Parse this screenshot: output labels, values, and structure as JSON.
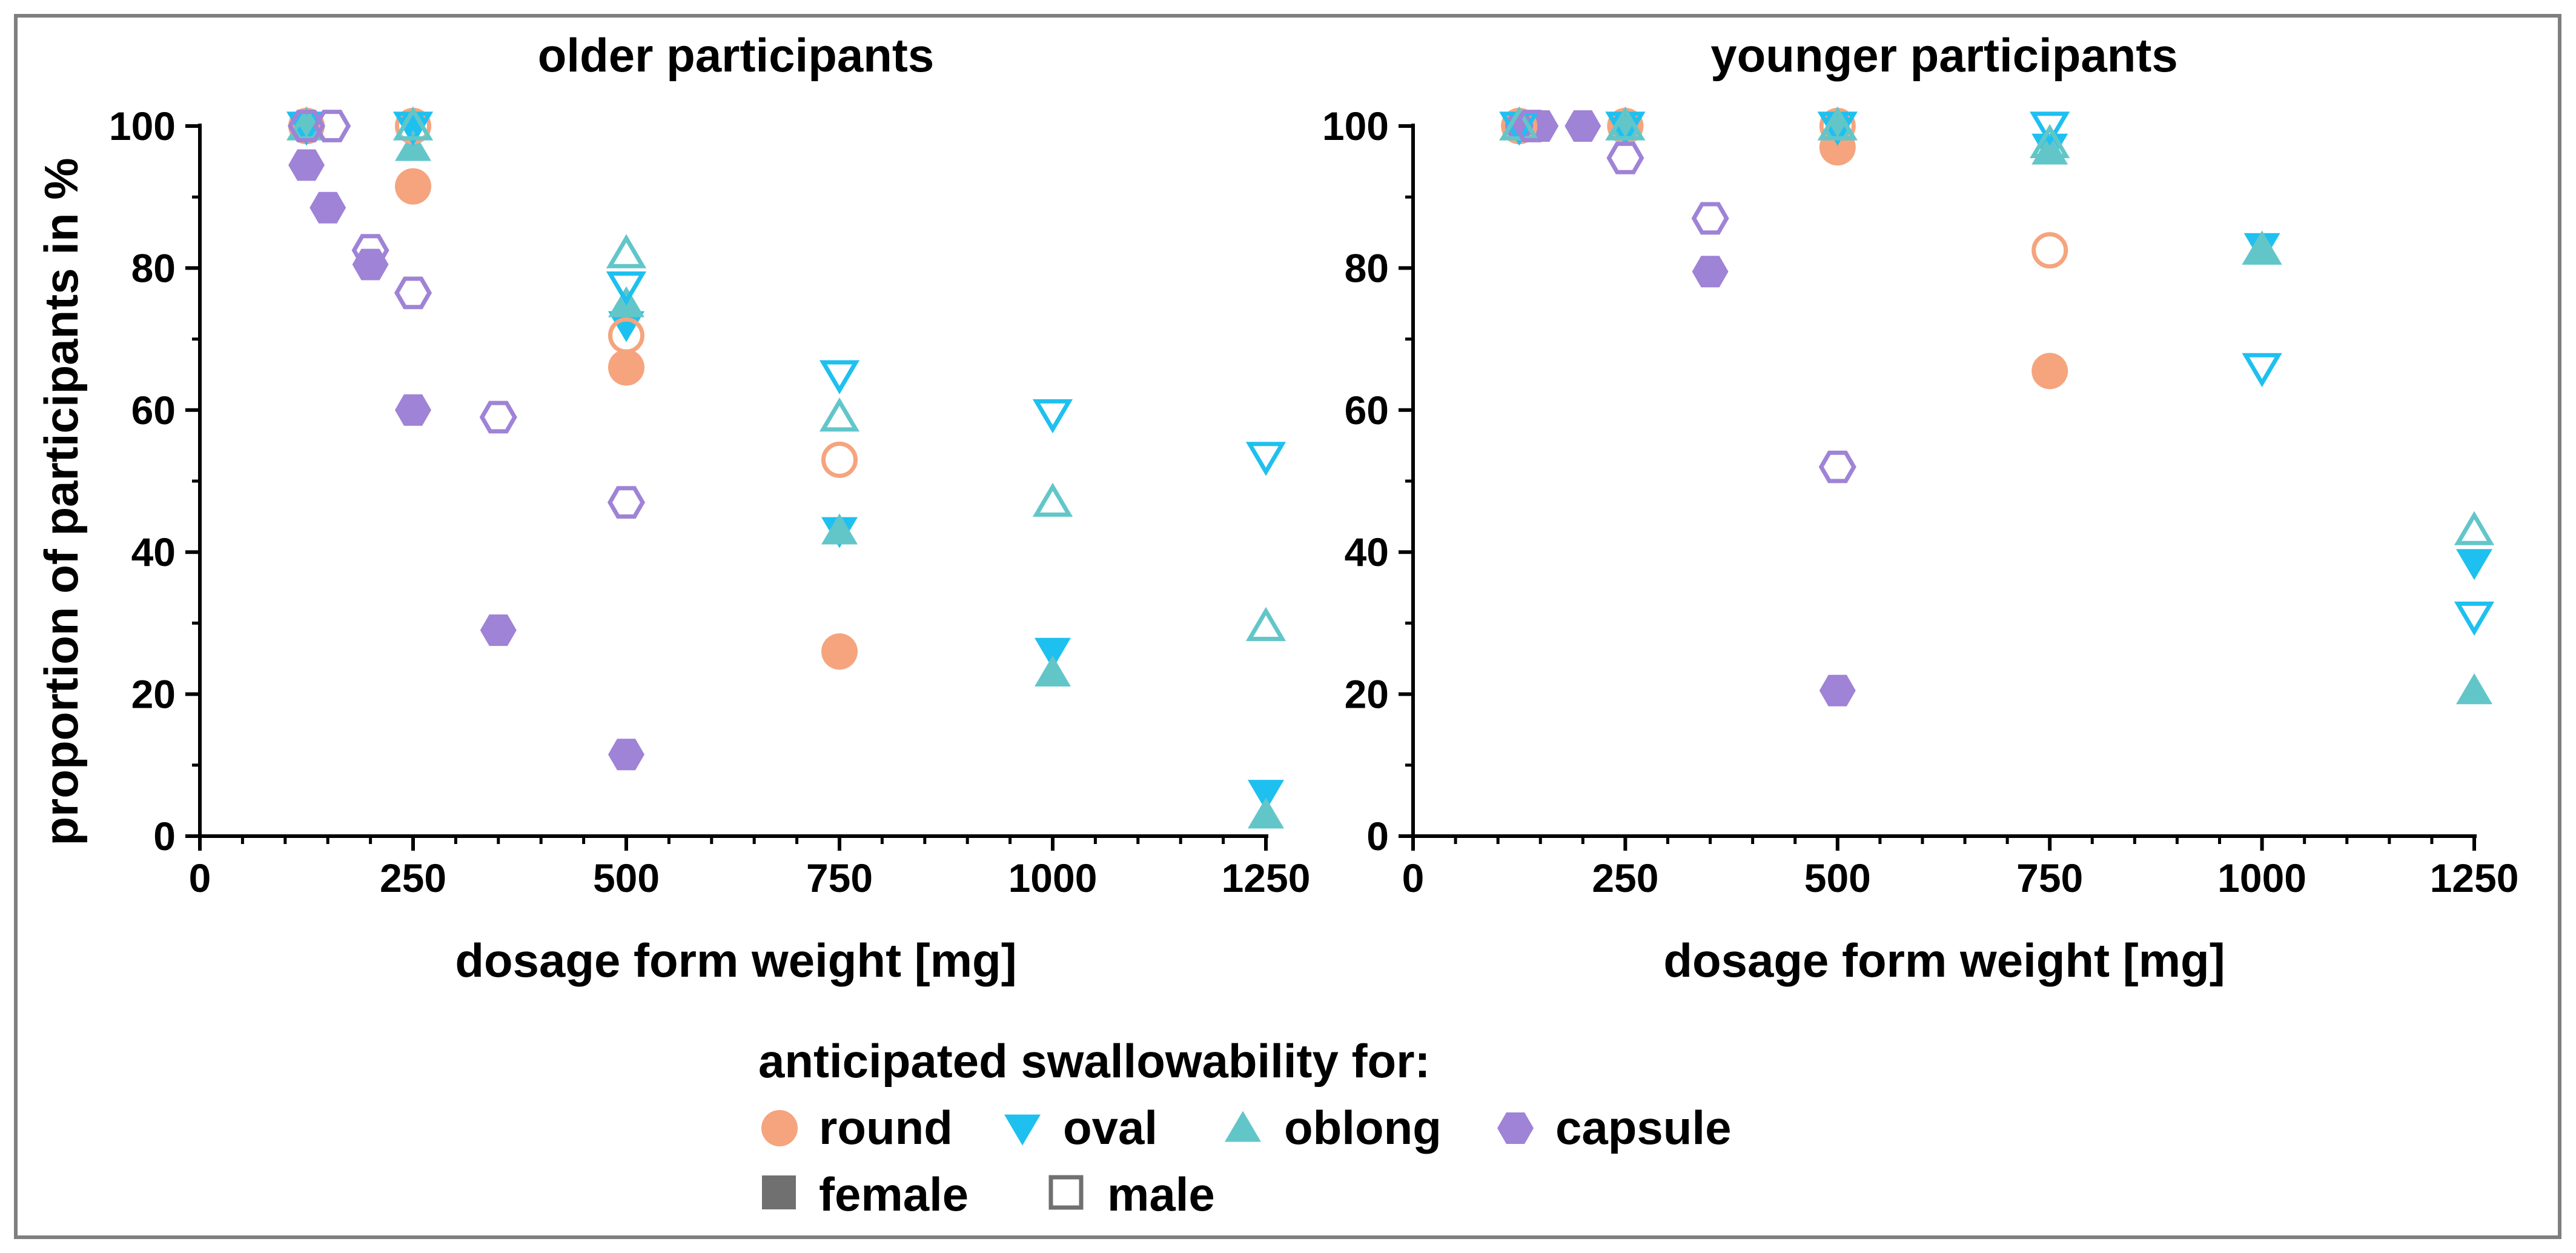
{
  "colors": {
    "round": "#F5A47E",
    "oval": "#1EC0F0",
    "oblong": "#62C6C9",
    "capsule": "#9F83D6",
    "legend_sex": "#707070",
    "frame": "#7f7f7f"
  },
  "chart_data": [
    {
      "type": "scatter",
      "title": "older participants",
      "xlabel": "dosage form weight [mg]",
      "ylabel": "proportion of participants in %",
      "xlim": [
        0,
        1250
      ],
      "ylim": [
        0,
        100
      ],
      "xticks": [
        0,
        250,
        500,
        750,
        1000,
        1250
      ],
      "yticks": [
        0,
        20,
        40,
        60,
        80,
        100
      ],
      "series": [
        {
          "shape": "round",
          "sex": "female",
          "points": [
            [
              125,
              100
            ],
            [
              250,
              91.5
            ],
            [
              500,
              66
            ],
            [
              750,
              26
            ]
          ]
        },
        {
          "shape": "round",
          "sex": "male",
          "points": [
            [
              125,
              100
            ],
            [
              250,
              100
            ],
            [
              500,
              70.5
            ],
            [
              750,
              53
            ]
          ]
        },
        {
          "shape": "oval",
          "sex": "female",
          "points": [
            [
              125,
              100
            ],
            [
              250,
              100
            ],
            [
              500,
              72
            ],
            [
              750,
              43
            ],
            [
              1000,
              26
            ],
            [
              1250,
              6
            ]
          ]
        },
        {
          "shape": "oval",
          "sex": "male",
          "points": [
            [
              125,
              100
            ],
            [
              250,
              100
            ],
            [
              500,
              77.5
            ],
            [
              750,
              65
            ],
            [
              1000,
              59.5
            ],
            [
              1250,
              53.5
            ]
          ]
        },
        {
          "shape": "oblong",
          "sex": "female",
          "points": [
            [
              125,
              100
            ],
            [
              250,
              97
            ],
            [
              500,
              75
            ],
            [
              750,
              43
            ],
            [
              1000,
              23
            ],
            [
              1250,
              3
            ]
          ]
        },
        {
          "shape": "oblong",
          "sex": "male",
          "points": [
            [
              125,
              100
            ],
            [
              250,
              100
            ],
            [
              500,
              82
            ],
            [
              750,
              59
            ],
            [
              1000,
              47
            ],
            [
              1250,
              29.5
            ]
          ]
        },
        {
          "shape": "capsule",
          "sex": "female",
          "points": [
            [
              125,
              94.5
            ],
            [
              150,
              88.5
            ],
            [
              200,
              80.5
            ],
            [
              250,
              60
            ],
            [
              350,
              29
            ],
            [
              500,
              11.5
            ]
          ]
        },
        {
          "shape": "capsule",
          "sex": "male",
          "points": [
            [
              125,
              100
            ],
            [
              155,
              100
            ],
            [
              200,
              82.5
            ],
            [
              250,
              76.5
            ],
            [
              350,
              59
            ],
            [
              500,
              47
            ]
          ]
        }
      ]
    },
    {
      "type": "scatter",
      "title": "younger participants",
      "xlabel": "dosage form weight [mg]",
      "ylabel": "",
      "xlim": [
        0,
        1250
      ],
      "ylim": [
        0,
        100
      ],
      "xticks": [
        0,
        250,
        500,
        750,
        1000,
        1250
      ],
      "yticks": [
        0,
        20,
        40,
        60,
        80,
        100
      ],
      "series": [
        {
          "shape": "round",
          "sex": "female",
          "points": [
            [
              125,
              100
            ],
            [
              250,
              100
            ],
            [
              500,
              97
            ],
            [
              750,
              65.5
            ]
          ]
        },
        {
          "shape": "round",
          "sex": "male",
          "points": [
            [
              125,
              100
            ],
            [
              250,
              100
            ],
            [
              500,
              100
            ],
            [
              750,
              82.5
            ]
          ]
        },
        {
          "shape": "oval",
          "sex": "female",
          "points": [
            [
              125,
              100
            ],
            [
              250,
              100
            ],
            [
              500,
              100
            ],
            [
              750,
              97
            ],
            [
              1000,
              83
            ],
            [
              1250,
              38.5
            ]
          ]
        },
        {
          "shape": "oval",
          "sex": "male",
          "points": [
            [
              125,
              100
            ],
            [
              250,
              100
            ],
            [
              500,
              100
            ],
            [
              750,
              100
            ],
            [
              1000,
              66
            ],
            [
              1250,
              31
            ]
          ]
        },
        {
          "shape": "oblong",
          "sex": "female",
          "points": [
            [
              125,
              100
            ],
            [
              250,
              100
            ],
            [
              500,
              100
            ],
            [
              750,
              96.5
            ],
            [
              1000,
              82.5
            ],
            [
              1250,
              20.5
            ]
          ]
        },
        {
          "shape": "oblong",
          "sex": "male",
          "points": [
            [
              125,
              100
            ],
            [
              250,
              100
            ],
            [
              500,
              100
            ],
            [
              750,
              97.5
            ],
            [
              1000,
              82.5
            ],
            [
              1250,
              43
            ]
          ]
        },
        {
          "shape": "capsule",
          "sex": "female",
          "points": [
            [
              125,
              100
            ],
            [
              150,
              100
            ],
            [
              200,
              100
            ],
            [
              350,
              79.5
            ],
            [
              500,
              20.5
            ]
          ]
        },
        {
          "shape": "capsule",
          "sex": "male",
          "points": [
            [
              140,
              100
            ],
            [
              250,
              95.5
            ],
            [
              350,
              87
            ],
            [
              500,
              52
            ]
          ]
        }
      ]
    }
  ],
  "legend": {
    "title": "anticipated swallowability for:",
    "shapes": [
      {
        "key": "round",
        "label": "round"
      },
      {
        "key": "oval",
        "label": "oval"
      },
      {
        "key": "oblong",
        "label": "oblong"
      },
      {
        "key": "capsule",
        "label": "capsule"
      }
    ],
    "sex": [
      {
        "key": "female",
        "label": "female"
      },
      {
        "key": "male",
        "label": "male"
      }
    ]
  }
}
